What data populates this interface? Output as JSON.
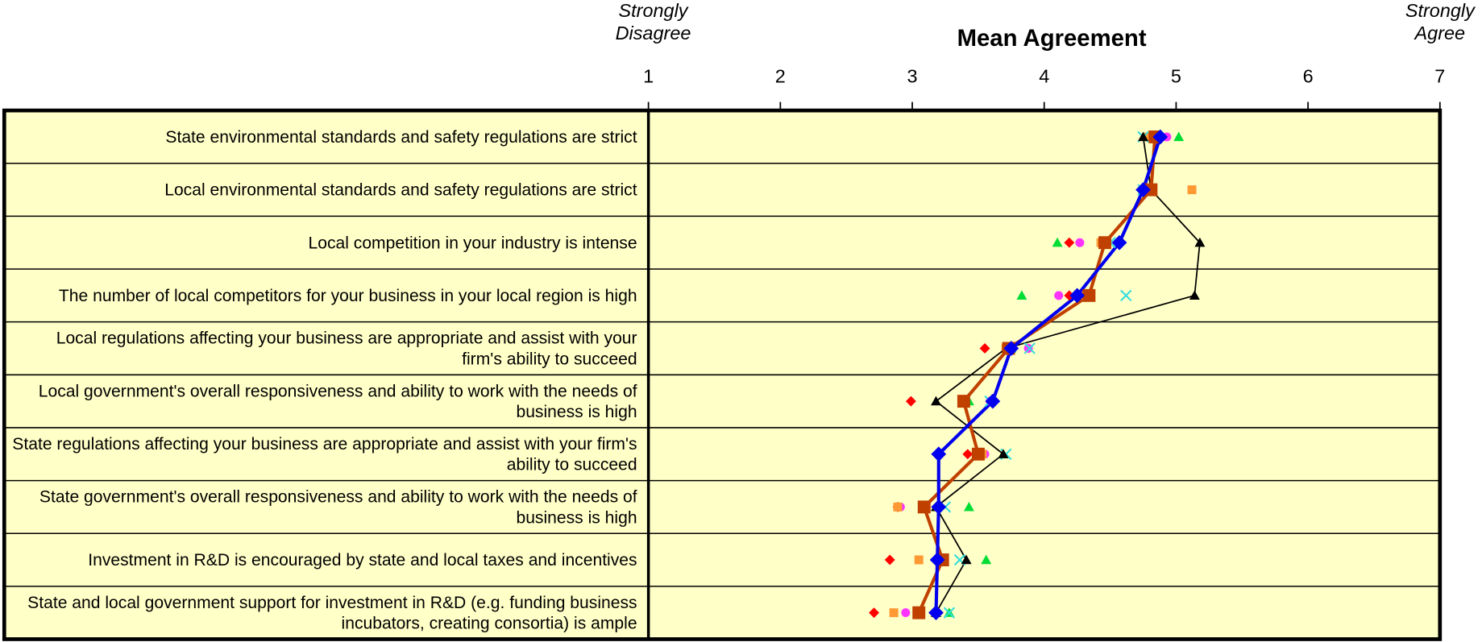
{
  "chart_data": {
    "type": "dot",
    "title": "Mean Agreement",
    "annotations": [
      "Strongly Disagree",
      "Strongly Agree"
    ],
    "categories": [
      "State environmental standards and safety regulations are strict",
      "Local environmental standards and safety regulations are strict",
      "Local competition in your industry is intense",
      "The number of local competitors for your business in your local region is high",
      "Local regulations affecting your business are appropriate and assist with your firm's ability to succeed",
      "Local government's overall responsiveness and ability to work with the needs of business is high",
      "State regulations affecting your business are appropriate and assist with your firm's ability to succeed",
      "State government's overall responsiveness and ability to work with the needs of business is high",
      "Investment in R&D is encouraged by state and local taxes and incentives",
      "State and local government support for investment in R&D (e.g. funding business incubators, creating consortia) is ample"
    ],
    "xlim": [
      1,
      7
    ],
    "xticks": [
      1,
      2,
      3,
      4,
      5,
      6,
      7
    ],
    "background": "#ffffc8",
    "series": [
      {
        "color": "#ff0000",
        "marker": "diamond",
        "line": "none",
        "values": [
          4.85,
          4.8,
          4.19,
          4.19,
          3.55,
          2.99,
          3.42,
          2.89,
          2.83,
          2.71
        ]
      },
      {
        "color": "#ff33ff",
        "marker": "circle",
        "line": "none",
        "values": [
          4.93,
          4.8,
          4.27,
          4.11,
          3.88,
          3.59,
          3.55,
          2.91,
          3.2,
          2.95
        ]
      },
      {
        "color": "#00dd33",
        "marker": "triangle",
        "line": "none",
        "values": [
          5.02,
          4.8,
          4.1,
          3.83,
          3.75,
          3.43,
          3.69,
          3.43,
          3.56,
          3.28
        ]
      },
      {
        "color": "#ff9933",
        "marker": "square",
        "line": "none",
        "values": [
          4.79,
          5.12,
          4.43,
          4.32,
          3.71,
          3.39,
          3.53,
          2.89,
          3.05,
          2.86
        ]
      },
      {
        "color": "#33dddd",
        "marker": "x",
        "line": "none",
        "values": [
          4.75,
          4.75,
          4.5,
          4.62,
          3.89,
          3.59,
          3.71,
          3.25,
          3.36,
          3.28
        ]
      },
      {
        "color": "#000000",
        "marker": "triangle",
        "line": "thin",
        "values": [
          4.75,
          4.81,
          5.18,
          5.14,
          3.71,
          3.18,
          3.69,
          3.18,
          3.41,
          3.18
        ]
      },
      {
        "color": "#c04000",
        "marker": "square",
        "line": "thick",
        "values": [
          4.84,
          4.81,
          4.46,
          4.34,
          3.73,
          3.39,
          3.5,
          3.09,
          3.23,
          3.05
        ]
      },
      {
        "color": "#0000ee",
        "marker": "diamond",
        "line": "thick",
        "values": [
          4.88,
          4.75,
          4.57,
          4.25,
          3.75,
          3.61,
          3.2,
          3.2,
          3.19,
          3.18
        ]
      }
    ]
  }
}
